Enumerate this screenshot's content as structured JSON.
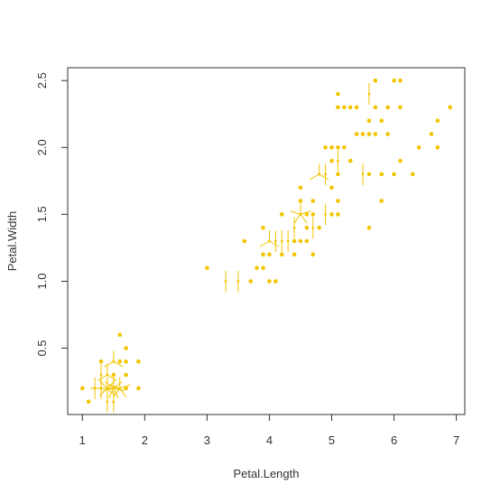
{
  "chart_data": {
    "type": "scatter",
    "x_label": "Petal.Length",
    "y_label": "Petal.Width",
    "color": "#f2c500",
    "x": [
      1.4,
      1.4,
      1.3,
      1.5,
      1.4,
      1.7,
      1.4,
      1.5,
      1.4,
      1.5,
      1.5,
      1.6,
      1.4,
      1.1,
      1.2,
      1.5,
      1.3,
      1.4,
      1.7,
      1.5,
      1.7,
      1.5,
      1.0,
      1.7,
      1.9,
      1.6,
      1.6,
      1.5,
      1.4,
      1.6,
      1.6,
      1.5,
      1.5,
      1.4,
      1.5,
      1.2,
      1.3,
      1.4,
      1.3,
      1.5,
      1.3,
      1.3,
      1.3,
      1.6,
      1.9,
      1.4,
      1.6,
      1.4,
      1.5,
      1.4,
      4.7,
      4.5,
      4.9,
      4.0,
      4.6,
      4.5,
      4.7,
      3.3,
      4.6,
      3.9,
      3.5,
      4.2,
      4.0,
      4.7,
      3.6,
      4.4,
      4.5,
      4.1,
      4.5,
      3.9,
      4.8,
      4.0,
      4.9,
      4.7,
      4.3,
      4.4,
      4.8,
      5.0,
      4.5,
      3.5,
      3.8,
      3.7,
      3.9,
      5.1,
      4.5,
      4.5,
      4.7,
      4.4,
      4.1,
      4.0,
      4.4,
      4.6,
      4.0,
      3.3,
      4.2,
      4.2,
      4.2,
      4.3,
      3.0,
      4.1,
      6.0,
      5.1,
      5.9,
      5.6,
      5.8,
      6.6,
      4.5,
      6.3,
      5.8,
      6.1,
      5.1,
      5.3,
      5.5,
      5.0,
      5.1,
      5.3,
      5.5,
      6.7,
      6.9,
      5.0,
      5.7,
      4.9,
      6.7,
      4.9,
      5.7,
      6.0,
      4.8,
      4.9,
      5.6,
      5.8,
      6.1,
      6.4,
      5.6,
      5.1,
      5.6,
      6.1,
      5.6,
      5.5,
      4.8,
      5.4,
      5.6,
      5.1,
      5.1,
      5.9,
      5.7,
      5.2,
      5.0,
      5.2,
      5.4,
      5.1
    ],
    "y": [
      0.2,
      0.2,
      0.2,
      0.2,
      0.2,
      0.4,
      0.3,
      0.2,
      0.2,
      0.1,
      0.2,
      0.2,
      0.1,
      0.1,
      0.2,
      0.4,
      0.4,
      0.3,
      0.3,
      0.3,
      0.2,
      0.4,
      0.2,
      0.5,
      0.2,
      0.2,
      0.4,
      0.2,
      0.2,
      0.2,
      0.2,
      0.4,
      0.1,
      0.2,
      0.2,
      0.2,
      0.2,
      0.1,
      0.2,
      0.2,
      0.3,
      0.3,
      0.2,
      0.6,
      0.4,
      0.3,
      0.2,
      0.2,
      0.2,
      0.2,
      1.4,
      1.5,
      1.5,
      1.3,
      1.5,
      1.3,
      1.6,
      1.0,
      1.3,
      1.4,
      1.0,
      1.5,
      1.0,
      1.4,
      1.3,
      1.4,
      1.5,
      1.0,
      1.5,
      1.1,
      1.8,
      1.3,
      1.5,
      1.2,
      1.3,
      1.4,
      1.4,
      1.7,
      1.5,
      1.0,
      1.1,
      1.0,
      1.2,
      1.6,
      1.5,
      1.6,
      1.5,
      1.3,
      1.3,
      1.3,
      1.2,
      1.4,
      1.2,
      1.0,
      1.3,
      1.2,
      1.3,
      1.3,
      1.1,
      1.3,
      2.5,
      1.9,
      2.1,
      1.8,
      2.2,
      2.1,
      1.7,
      1.8,
      1.8,
      2.5,
      2.0,
      1.9,
      2.1,
      2.0,
      2.4,
      2.3,
      1.8,
      2.2,
      2.3,
      1.5,
      2.3,
      2.0,
      2.0,
      1.8,
      2.1,
      1.8,
      1.8,
      1.8,
      2.1,
      1.6,
      1.9,
      2.0,
      2.2,
      1.5,
      1.4,
      2.3,
      2.4,
      1.8,
      1.8,
      2.1,
      2.4,
      2.3,
      1.9,
      2.3,
      2.5,
      2.3,
      1.9,
      2.0,
      2.3,
      1.8
    ],
    "xlim": [
      0.764,
      7.136
    ],
    "ylim": [
      0.004,
      2.596
    ],
    "xticks": [
      1,
      2,
      3,
      4,
      5,
      6,
      7
    ],
    "yticks": [
      0.5,
      {
        "value": 1,
        "label": "1.0"
      },
      1.5,
      {
        "value": 2,
        "label": "2.0"
      },
      2.5
    ]
  }
}
